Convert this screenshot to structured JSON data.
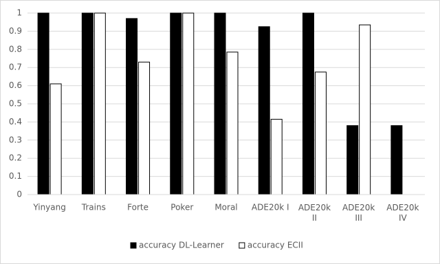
{
  "chart_data": {
    "type": "bar",
    "categories": [
      "Yinyang",
      "Trains",
      "Forte",
      "Poker",
      "Moral",
      "ADE20k I",
      "ADE20k II",
      "ADE20k III",
      "ADE20k IV"
    ],
    "series": [
      {
        "name": "accuracy DL-Learner",
        "color": "#000000",
        "values": [
          1,
          1,
          0.97,
          1,
          1,
          0.925,
          1,
          0.38,
          0.38
        ]
      },
      {
        "name": "accuracy ECII",
        "color": "#ffffff",
        "values": [
          0.61,
          1,
          0.73,
          1,
          0.785,
          0.415,
          0.675,
          0.935,
          null
        ]
      }
    ],
    "ylim": [
      0,
      1
    ],
    "yticks": [
      0,
      0.1,
      0.2,
      0.3,
      0.4,
      0.5,
      0.6,
      0.7,
      0.8,
      0.9,
      1
    ],
    "grid": true,
    "legend": "bottom"
  }
}
